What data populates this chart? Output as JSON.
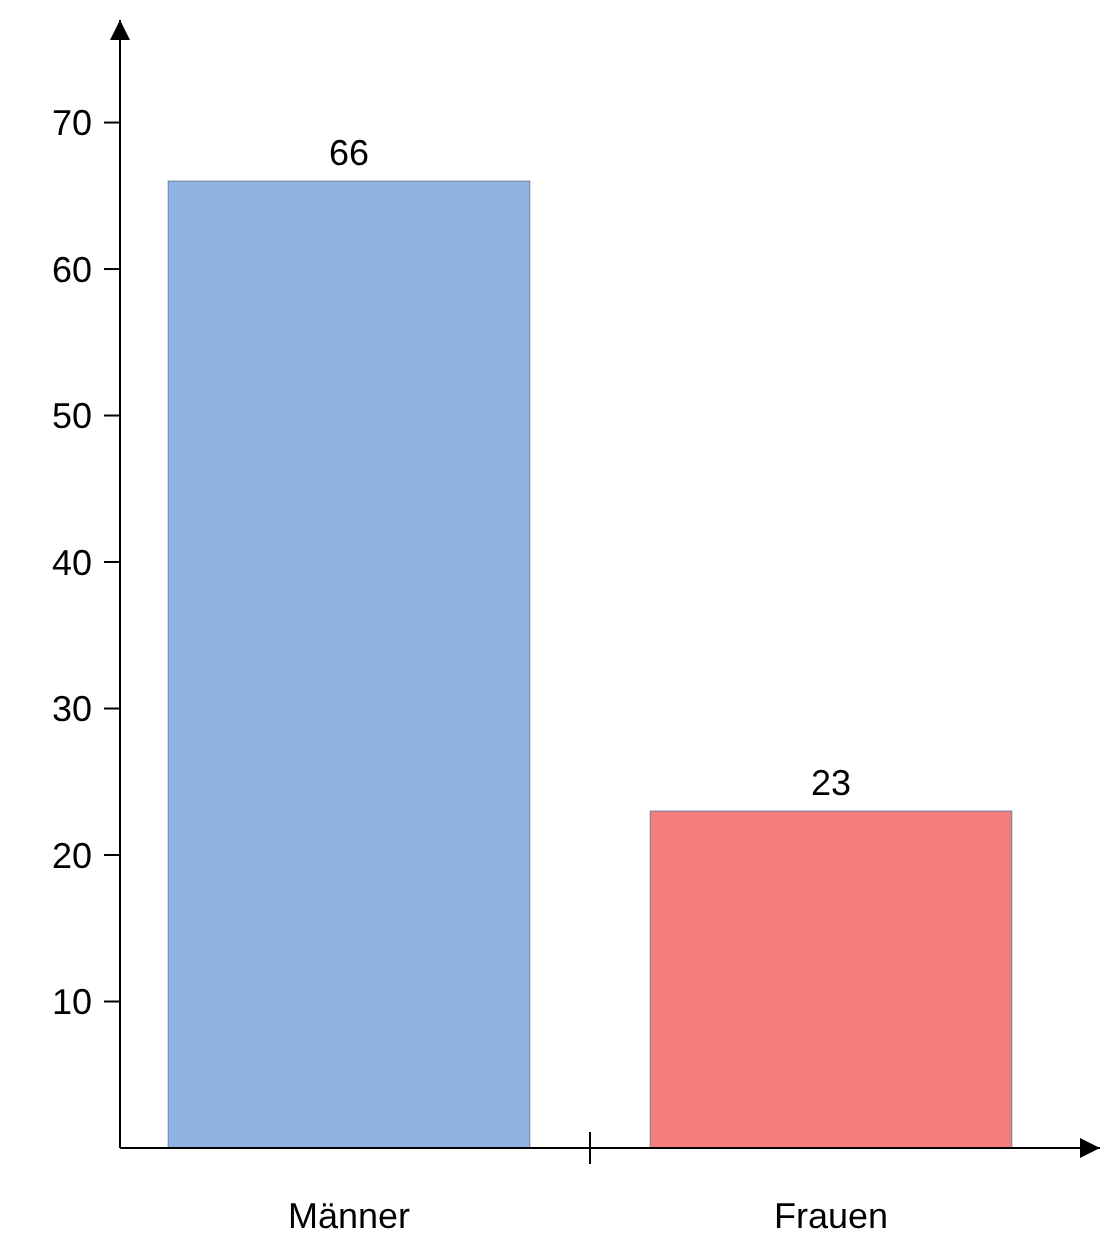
{
  "chart_data": {
    "type": "bar",
    "categories": [
      "Männer",
      "Frauen"
    ],
    "values": [
      66,
      23
    ],
    "colors": [
      "#8fb4e3",
      "#f47c7c"
    ],
    "ylim": [
      0,
      77
    ],
    "yticks": [
      10,
      20,
      30,
      40,
      50,
      60,
      70
    ],
    "data_labels": true,
    "grid": false
  }
}
